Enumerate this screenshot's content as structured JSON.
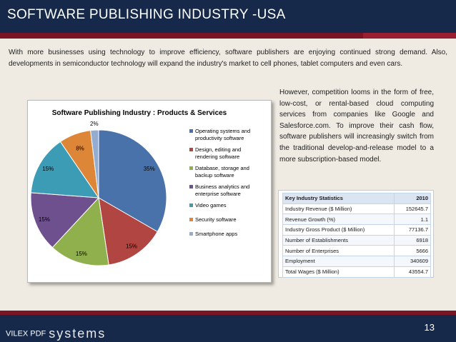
{
  "slide": {
    "title": "SOFTWARE PUBLISHING INDUSTRY -USA",
    "intro": "With more businesses using technology to improve efficiency, software publishers are enjoying continued strong demand. Also, developments in semiconductor technology will expand the industry's market to cell phones, tablet computers and even cars.",
    "side_text": "However, competition looms in the form of free, low-cost, or rental-based cloud computing services from companies like Google and Salesforce.com. To improve their cash flow, software publishers will increasingly switch from the traditional develop-and-release model to a more subscription-based model.",
    "page_number": "13"
  },
  "footer": {
    "brand_small": "VILEX PDF",
    "brand_big": "systems"
  },
  "colors": {
    "header_bg": "#16294a",
    "stripe": "#7b1525",
    "page_bg": "#efeae2"
  },
  "chart_data": {
    "type": "pie",
    "title": "Software Publishing Industry : Products & Services",
    "legend_position": "right",
    "slices": [
      {
        "name": "Operating systems and productivity software",
        "value": 35,
        "label": "35%",
        "color": "#4a72aa"
      },
      {
        "name": "Design, editing and rendering software",
        "value": 15,
        "label": "15%",
        "color": "#b14542"
      },
      {
        "name": "Database, storage and backup software",
        "value": 15,
        "label": "15%",
        "color": "#8fb04d"
      },
      {
        "name": "Business analytics and enterprise software",
        "value": 15,
        "label": "15%",
        "color": "#6e508f"
      },
      {
        "name": "Video games",
        "value": 15,
        "label": "15%",
        "color": "#3c9bb5"
      },
      {
        "name": "Security software",
        "value": 8,
        "label": "8%",
        "color": "#dd8637"
      },
      {
        "name": "Smartphone apps",
        "value": 2,
        "label": "2%",
        "color": "#93acd0"
      }
    ]
  },
  "stats_table": {
    "header": [
      "Key Industry Statistics",
      "2010"
    ],
    "rows": [
      [
        "Industry Revenue ($ Million)",
        "152645.7"
      ],
      [
        "Revenue Growth (%)",
        "1.1"
      ],
      [
        "Industry Gross Product ($ Million)",
        "77136.7"
      ],
      [
        "Number of Establishments",
        "6918"
      ],
      [
        "Number of Enterprises",
        "5666"
      ],
      [
        "Employment",
        "340609"
      ],
      [
        "Total Wages ($ Million)",
        "43554.7"
      ]
    ]
  }
}
